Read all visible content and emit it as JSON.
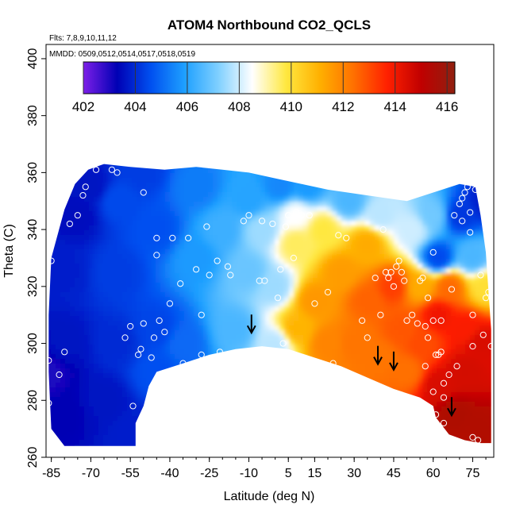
{
  "chart_data": {
    "type": "heatmap",
    "title": "ATOM4 Northbound CO2_QCLS",
    "annotations": [
      "Flts: 7,8,9,10,11,12",
      "MMDD: 0509,0512,0514,0517,0518,0519"
    ],
    "xlabel": "Latitude (deg N)",
    "ylabel": "Theta (C)",
    "xlim": [
      -87,
      83
    ],
    "ylim": [
      260,
      405
    ],
    "x_ticks": [
      -85,
      -70,
      -55,
      -40,
      -25,
      -10,
      5,
      15,
      30,
      45,
      60,
      75
    ],
    "x_tick_labels": [
      "-85",
      "-70",
      "-55",
      "-40",
      "-25",
      "-10",
      "5",
      "15",
      "30",
      "45",
      "60",
      "75"
    ],
    "y_ticks": [
      260,
      280,
      300,
      320,
      340,
      360,
      380,
      400
    ],
    "y_tick_labels": [
      "260",
      "280",
      "300",
      "320",
      "340",
      "360",
      "380",
      "400"
    ],
    "colorbar": {
      "range": [
        402,
        416.3
      ],
      "ticks": [
        402,
        404,
        406,
        408,
        410,
        412,
        414,
        416
      ],
      "tick_labels": [
        "402",
        "404",
        "406",
        "408",
        "410",
        "412",
        "414",
        "416"
      ],
      "colors": [
        "#7d1fe8",
        "#0000b4",
        "#0050f0",
        "#1ea0ff",
        "#80d0ff",
        "#ffffff",
        "#ffe840",
        "#ffb000",
        "#ff7000",
        "#ff2000",
        "#c00000",
        "#902010"
      ]
    },
    "boundary_top": [
      [
        -85,
        330
      ],
      [
        -80,
        347
      ],
      [
        -76,
        356
      ],
      [
        -71,
        361
      ],
      [
        -65,
        363
      ],
      [
        -55,
        362
      ],
      [
        -42,
        361
      ],
      [
        -30,
        362
      ],
      [
        -20,
        361
      ],
      [
        -10,
        360
      ],
      [
        0,
        358
      ],
      [
        10,
        356
      ],
      [
        20,
        354
      ],
      [
        35,
        352
      ],
      [
        50,
        350
      ],
      [
        60,
        353
      ],
      [
        70,
        356
      ],
      [
        76,
        355
      ],
      [
        78,
        345
      ],
      [
        80,
        332
      ],
      [
        81,
        318
      ],
      [
        82,
        305
      ],
      [
        82,
        290
      ]
    ],
    "boundary_bottom": [
      [
        82,
        265
      ],
      [
        78,
        265
      ],
      [
        72,
        266
      ],
      [
        66,
        268
      ],
      [
        61,
        274
      ],
      [
        60,
        278
      ],
      [
        55,
        281
      ],
      [
        45,
        284
      ],
      [
        35,
        288
      ],
      [
        25,
        292
      ],
      [
        15,
        295
      ],
      [
        5,
        298
      ],
      [
        -5,
        299
      ],
      [
        -15,
        298
      ],
      [
        -25,
        296
      ],
      [
        -35,
        293
      ],
      [
        -45,
        290
      ],
      [
        -48,
        285
      ],
      [
        -50,
        278
      ],
      [
        -52,
        274
      ],
      [
        -53,
        272
      ],
      [
        -53,
        264
      ],
      [
        -80,
        264
      ],
      [
        -85,
        270
      ],
      [
        -86,
        290
      ],
      [
        -86,
        310
      ]
    ],
    "field_anchors": [
      {
        "x": -80,
        "y": 275,
        "v": 403.3
      },
      {
        "x": -80,
        "y": 300,
        "v": 403.6
      },
      {
        "x": -80,
        "y": 325,
        "v": 403.8
      },
      {
        "x": -75,
        "y": 345,
        "v": 403.5
      },
      {
        "x": -70,
        "y": 355,
        "v": 403.6
      },
      {
        "x": -65,
        "y": 280,
        "v": 403.6
      },
      {
        "x": -60,
        "y": 300,
        "v": 404.0
      },
      {
        "x": -60,
        "y": 325,
        "v": 404.3
      },
      {
        "x": -60,
        "y": 350,
        "v": 404.5
      },
      {
        "x": -50,
        "y": 360,
        "v": 404.3
      },
      {
        "x": -45,
        "y": 340,
        "v": 404.6
      },
      {
        "x": -45,
        "y": 305,
        "v": 404.4
      },
      {
        "x": -45,
        "y": 290,
        "v": 404.6
      },
      {
        "x": -35,
        "y": 300,
        "v": 405.0
      },
      {
        "x": -30,
        "y": 330,
        "v": 405.8
      },
      {
        "x": -30,
        "y": 355,
        "v": 405.3
      },
      {
        "x": -20,
        "y": 340,
        "v": 406.3
      },
      {
        "x": -15,
        "y": 305,
        "v": 406.5
      },
      {
        "x": -10,
        "y": 350,
        "v": 406.0
      },
      {
        "x": -10,
        "y": 325,
        "v": 406.9
      },
      {
        "x": -5,
        "y": 340,
        "v": 407.5
      },
      {
        "x": 0,
        "y": 320,
        "v": 407.5
      },
      {
        "x": 0,
        "y": 300,
        "v": 407.8
      },
      {
        "x": 2,
        "y": 355,
        "v": 405.5
      },
      {
        "x": 8,
        "y": 335,
        "v": 409.6
      },
      {
        "x": 8,
        "y": 345,
        "v": 408.5
      },
      {
        "x": 8,
        "y": 305,
        "v": 411.0
      },
      {
        "x": 12,
        "y": 355,
        "v": 405.8
      },
      {
        "x": 15,
        "y": 315,
        "v": 411.6
      },
      {
        "x": 18,
        "y": 340,
        "v": 409.8
      },
      {
        "x": 20,
        "y": 300,
        "v": 412.0
      },
      {
        "x": 25,
        "y": 325,
        "v": 411.5
      },
      {
        "x": 28,
        "y": 350,
        "v": 406.5
      },
      {
        "x": 30,
        "y": 300,
        "v": 412.3
      },
      {
        "x": 35,
        "y": 315,
        "v": 412.6
      },
      {
        "x": 35,
        "y": 335,
        "v": 411.2
      },
      {
        "x": 40,
        "y": 345,
        "v": 407.8
      },
      {
        "x": 40,
        "y": 295,
        "v": 412.3
      },
      {
        "x": 45,
        "y": 320,
        "v": 413.2
      },
      {
        "x": 48,
        "y": 305,
        "v": 412.8
      },
      {
        "x": 50,
        "y": 290,
        "v": 412.4
      },
      {
        "x": 52,
        "y": 340,
        "v": 408.0
      },
      {
        "x": 55,
        "y": 320,
        "v": 411.2
      },
      {
        "x": 56,
        "y": 300,
        "v": 413.0
      },
      {
        "x": 60,
        "y": 345,
        "v": 407.0
      },
      {
        "x": 62,
        "y": 330,
        "v": 404.5
      },
      {
        "x": 62,
        "y": 310,
        "v": 414.0
      },
      {
        "x": 62,
        "y": 285,
        "v": 414.5
      },
      {
        "x": 66,
        "y": 320,
        "v": 412.5
      },
      {
        "x": 68,
        "y": 275,
        "v": 415.5
      },
      {
        "x": 70,
        "y": 345,
        "v": 404.2
      },
      {
        "x": 72,
        "y": 305,
        "v": 413.8
      },
      {
        "x": 72,
        "y": 290,
        "v": 414.6
      },
      {
        "x": 75,
        "y": 330,
        "v": 406.5
      },
      {
        "x": 78,
        "y": 270,
        "v": 415.4
      },
      {
        "x": 78,
        "y": 300,
        "v": 414.5
      },
      {
        "x": 80,
        "y": 320,
        "v": 410.0
      },
      {
        "x": 80,
        "y": 350,
        "v": 403.8
      },
      {
        "x": -86,
        "y": 290,
        "v": 403.0
      },
      {
        "x": -53,
        "y": 268,
        "v": 403.8
      }
    ],
    "observation_points": [
      [
        -86,
        279
      ],
      [
        -86,
        294
      ],
      [
        -85,
        329
      ],
      [
        -82,
        289
      ],
      [
        -80,
        297
      ],
      [
        -78,
        342
      ],
      [
        -75,
        345
      ],
      [
        -73,
        352
      ],
      [
        -72,
        355
      ],
      [
        -68,
        361
      ],
      [
        -57,
        302
      ],
      [
        -55,
        306
      ],
      [
        -54,
        278
      ],
      [
        -52,
        296
      ],
      [
        -51,
        298
      ],
      [
        -50,
        307
      ],
      [
        -50,
        353
      ],
      [
        -47,
        295
      ],
      [
        -46,
        302
      ],
      [
        -45,
        337
      ],
      [
        -45,
        331
      ],
      [
        -44,
        275
      ],
      [
        -44,
        308
      ],
      [
        -42,
        304
      ],
      [
        -40,
        290
      ],
      [
        -40,
        314
      ],
      [
        -39,
        337
      ],
      [
        -36,
        321
      ],
      [
        -35,
        293
      ],
      [
        -33,
        337
      ],
      [
        -30,
        326
      ],
      [
        -28,
        296
      ],
      [
        -28,
        310
      ],
      [
        -26,
        341
      ],
      [
        -25,
        324
      ],
      [
        -22,
        329
      ],
      [
        -21,
        297
      ],
      [
        -18,
        327
      ],
      [
        -17,
        324
      ],
      [
        -15,
        289
      ],
      [
        -12,
        343
      ],
      [
        -10,
        345
      ],
      [
        -6,
        322
      ],
      [
        -5,
        343
      ],
      [
        -4,
        322
      ],
      [
        -1,
        342
      ],
      [
        1,
        316
      ],
      [
        2,
        326
      ],
      [
        3,
        300
      ],
      [
        4,
        341
      ],
      [
        5,
        345
      ],
      [
        7,
        330
      ],
      [
        8,
        346
      ],
      [
        10,
        345
      ],
      [
        13,
        345
      ],
      [
        15,
        314
      ],
      [
        20,
        318
      ],
      [
        22,
        293
      ],
      [
        24,
        338
      ],
      [
        27,
        337
      ],
      [
        33,
        308
      ],
      [
        35,
        302
      ],
      [
        38,
        323
      ],
      [
        40,
        310
      ],
      [
        41,
        340
      ],
      [
        42,
        325
      ],
      [
        43,
        323
      ],
      [
        44,
        325
      ],
      [
        45,
        320
      ],
      [
        46,
        327
      ],
      [
        47,
        329
      ],
      [
        48,
        325
      ],
      [
        49,
        322
      ],
      [
        50,
        308
      ],
      [
        52,
        310
      ],
      [
        54,
        307
      ],
      [
        55,
        322
      ],
      [
        56,
        323
      ],
      [
        57,
        306
      ],
      [
        57,
        292
      ],
      [
        58,
        316
      ],
      [
        58,
        302
      ],
      [
        60,
        332
      ],
      [
        60,
        308
      ],
      [
        60,
        283
      ],
      [
        61,
        296
      ],
      [
        61,
        275
      ],
      [
        62,
        296
      ],
      [
        63,
        297
      ],
      [
        63,
        308
      ],
      [
        64,
        272
      ],
      [
        64,
        281
      ],
      [
        64,
        286
      ],
      [
        64,
        265
      ],
      [
        65,
        267
      ],
      [
        66,
        289
      ],
      [
        67,
        319
      ],
      [
        68,
        345
      ],
      [
        69,
        292
      ],
      [
        70,
        349
      ],
      [
        71,
        343
      ],
      [
        71,
        351
      ],
      [
        72,
        353
      ],
      [
        73,
        355
      ],
      [
        74,
        339
      ],
      [
        74,
        346
      ],
      [
        75,
        310
      ],
      [
        75,
        299
      ],
      [
        75,
        267
      ],
      [
        77,
        266
      ],
      [
        78,
        324
      ],
      [
        79,
        303
      ],
      [
        80,
        316
      ],
      [
        81,
        318
      ],
      [
        82,
        299
      ],
      [
        76,
        354
      ],
      [
        -60,
        360
      ],
      [
        -62,
        361
      ]
    ],
    "markers_arrows": [
      [
        -9,
        304
      ],
      [
        39,
        293
      ],
      [
        45,
        291
      ],
      [
        67,
        275
      ]
    ]
  }
}
